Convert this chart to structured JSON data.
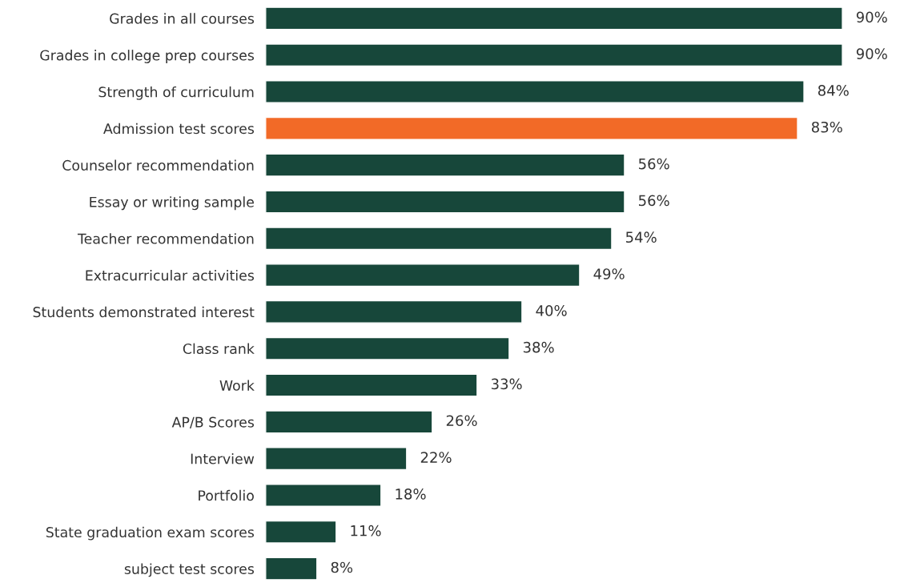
{
  "chart_data": {
    "type": "bar",
    "orientation": "horizontal",
    "categories": [
      "Grades in all courses",
      "Grades in college prep courses",
      "Strength of curriculum",
      "Admission test scores",
      "Counselor recommendation",
      "Essay or writing sample",
      "Teacher recommendation",
      "Extracurricular activities",
      "Students demonstrated interest",
      "Class rank",
      "Work",
      "AP/B Scores",
      "Interview",
      "Portfolio",
      "State graduation exam scores",
      "subject test scores"
    ],
    "values": [
      90,
      90,
      84,
      83,
      56,
      56,
      54,
      49,
      40,
      38,
      33,
      26,
      22,
      18,
      11,
      8
    ],
    "colors": [
      "#17473a",
      "#17473a",
      "#17473a",
      "#f26a27",
      "#17473a",
      "#17473a",
      "#17473a",
      "#17473a",
      "#17473a",
      "#17473a",
      "#17473a",
      "#17473a",
      "#17473a",
      "#17473a",
      "#17473a",
      "#17473a"
    ],
    "value_labels": [
      "90%",
      "90%",
      "84%",
      "83%",
      "56%",
      "56%",
      "54%",
      "49%",
      "40%",
      "38%",
      "33%",
      "26%",
      "22%",
      "18%",
      "11%",
      "8%"
    ],
    "grid": false,
    "legend": false
  }
}
